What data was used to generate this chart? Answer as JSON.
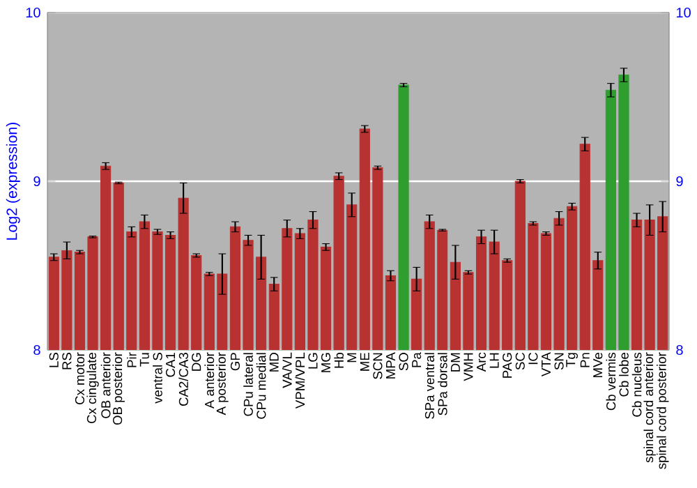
{
  "chart_data": {
    "type": "bar",
    "ylabel": "Log2 (expression)",
    "categories": [
      "LS",
      "RS",
      "Cx motor",
      "Cx cingulate",
      "OB anterior",
      "OB posterior",
      "Pir",
      "Tu",
      "ventral S",
      "CA1",
      "CA2/CA3",
      "DG",
      "A anterior",
      "A posterior",
      "GP",
      "CPu lateral",
      "CPu medial",
      "MD",
      "VA/VL",
      "VPM/VPL",
      "LG",
      "MG",
      "Hb",
      "M",
      "ME",
      "SCN",
      "MPA",
      "SO",
      "Pa",
      "SPa ventral",
      "SPa dorsal",
      "DM",
      "VMH",
      "Arc",
      "LH",
      "PAG",
      "SC",
      "IC",
      "VTA",
      "SN",
      "Tg",
      "Pn",
      "MVe",
      "Cb vermis",
      "Cb lobe",
      "Cb nucleus",
      "spinal cord anterior",
      "spinal cord posterior"
    ],
    "values": [
      8.55,
      8.59,
      8.58,
      8.67,
      9.09,
      8.99,
      8.7,
      8.76,
      8.7,
      8.68,
      8.9,
      8.56,
      8.45,
      8.45,
      8.73,
      8.65,
      8.55,
      8.39,
      8.72,
      8.69,
      8.77,
      8.61,
      9.03,
      8.86,
      9.31,
      9.08,
      8.44,
      9.57,
      8.42,
      8.76,
      8.71,
      8.52,
      8.46,
      8.67,
      8.64,
      8.53,
      9.0,
      8.75,
      8.69,
      8.78,
      8.85,
      9.22,
      8.53,
      9.54,
      9.63,
      8.77,
      8.77,
      8.79
    ],
    "errors": [
      0.02,
      0.05,
      0.01,
      0.005,
      0.02,
      0.005,
      0.03,
      0.04,
      0.015,
      0.02,
      0.09,
      0.01,
      0.01,
      0.12,
      0.03,
      0.03,
      0.13,
      0.04,
      0.05,
      0.03,
      0.05,
      0.02,
      0.02,
      0.07,
      0.02,
      0.01,
      0.03,
      0.01,
      0.07,
      0.04,
      0.005,
      0.1,
      0.01,
      0.04,
      0.07,
      0.01,
      0.01,
      0.01,
      0.01,
      0.04,
      0.02,
      0.04,
      0.05,
      0.04,
      0.04,
      0.04,
      0.09,
      0.09
    ],
    "colors": [
      "#b83232",
      "#b83232",
      "#b83232",
      "#b83232",
      "#b83232",
      "#b83232",
      "#b83232",
      "#b83232",
      "#b83232",
      "#b83232",
      "#b83232",
      "#b83232",
      "#b83232",
      "#b83232",
      "#b83232",
      "#b83232",
      "#b83232",
      "#b83232",
      "#b83232",
      "#b83232",
      "#b83232",
      "#b83232",
      "#b83232",
      "#b83232",
      "#b83232",
      "#b83232",
      "#b83232",
      "#2e9e2e",
      "#b83232",
      "#b83232",
      "#b83232",
      "#b83232",
      "#b83232",
      "#b83232",
      "#b83232",
      "#b83232",
      "#b83232",
      "#b83232",
      "#b83232",
      "#b83232",
      "#b83232",
      "#b83232",
      "#b83232",
      "#2e9e2e",
      "#2e9e2e",
      "#b83232",
      "#b83232",
      "#b83232"
    ],
    "ylim": [
      8,
      10
    ],
    "yticks": [
      8,
      9,
      10
    ],
    "y2lim": [
      8,
      10
    ],
    "y2ticks": [
      8,
      9,
      10
    ],
    "grid": "y"
  }
}
